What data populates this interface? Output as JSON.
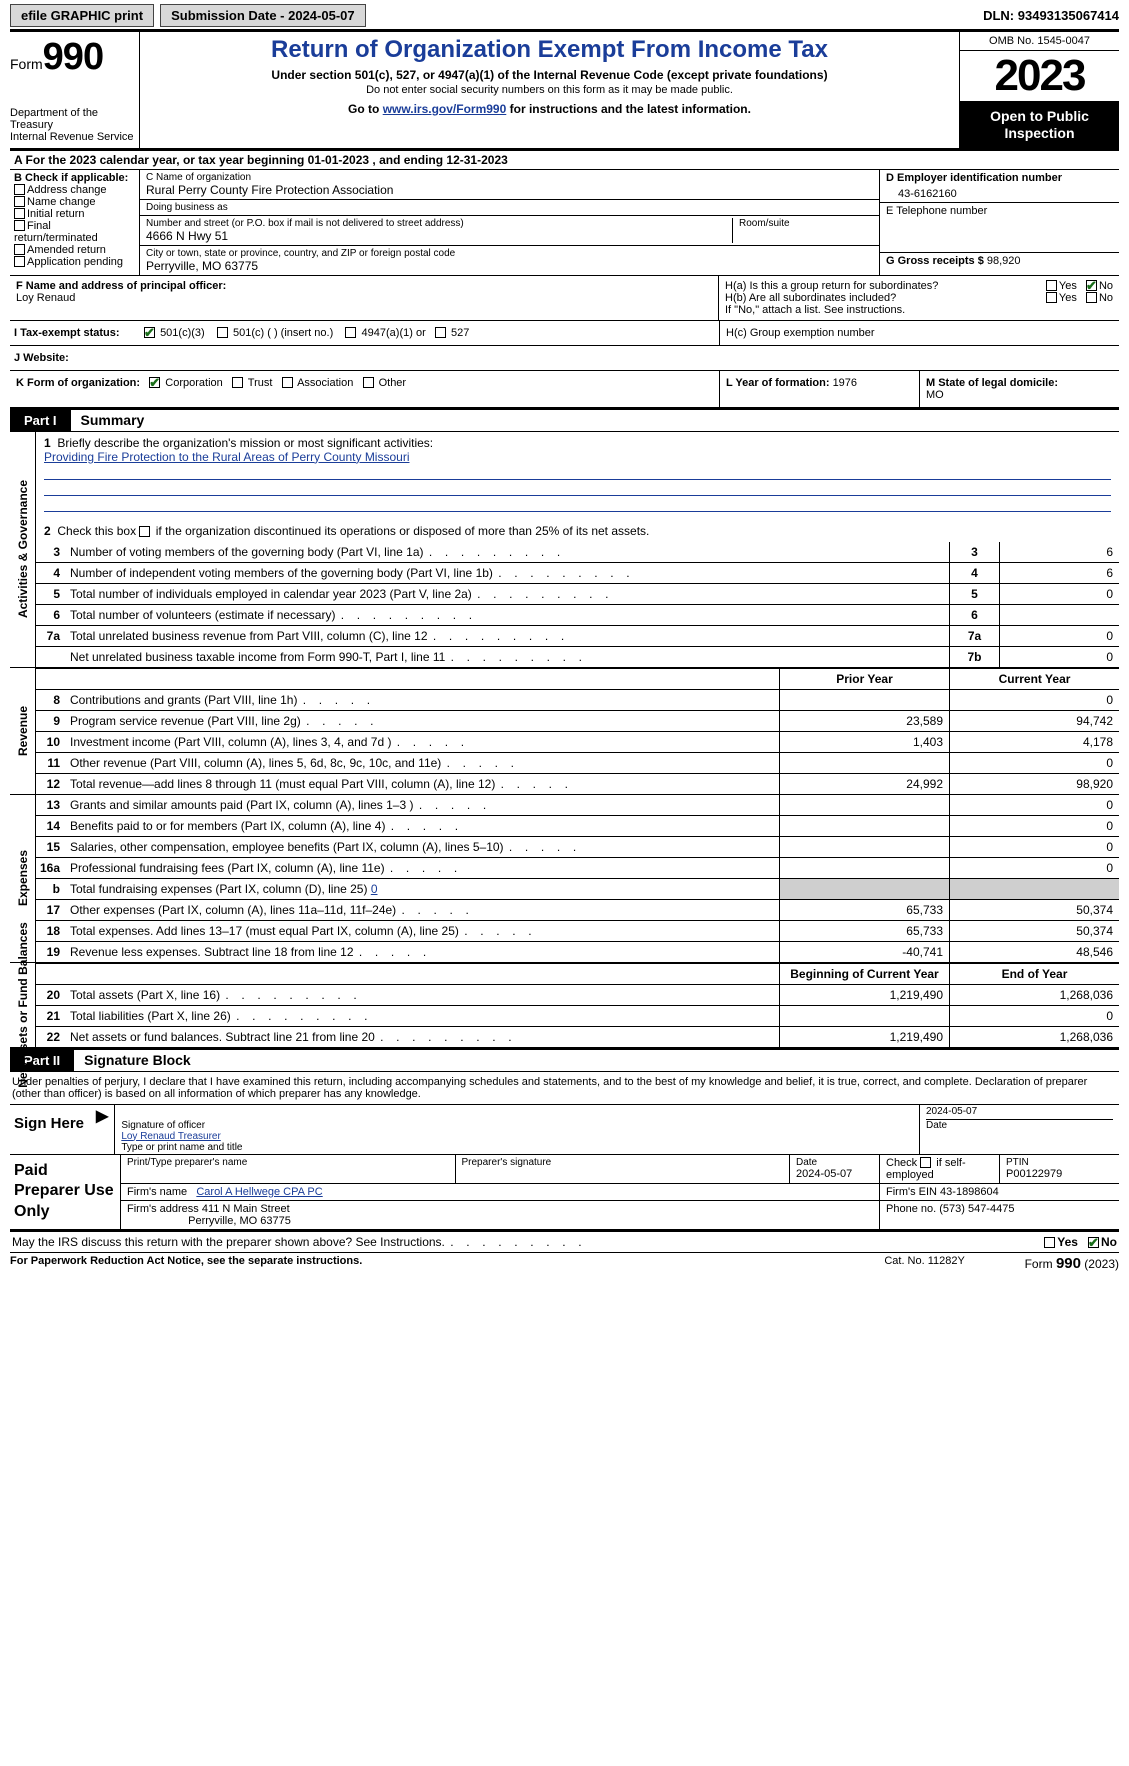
{
  "topbar": {
    "efile": "efile GRAPHIC print",
    "sub_date_label": "Submission Date - ",
    "sub_date": "2024-05-07",
    "dln_label": "DLN: ",
    "dln": "93493135067414"
  },
  "header": {
    "form_prefix": "Form",
    "form_number": "990",
    "dept": "Department of the Treasury\nInternal Revenue Service",
    "title": "Return of Organization Exempt From Income Tax",
    "sub1": "Under section 501(c), 527, or 4947(a)(1) of the Internal Revenue Code (except private foundations)",
    "sub2": "Do not enter social security numbers on this form as it may be made public.",
    "goto_pre": "Go to ",
    "goto_link": "www.irs.gov/Form990",
    "goto_post": " for instructions and the latest information.",
    "omb": "OMB No. 1545-0047",
    "year": "2023",
    "open": "Open to Public Inspection"
  },
  "lineA": {
    "pre": "A  For the 2023 calendar year, or tax year beginning ",
    "begin": "01-01-2023",
    "mid": "  , and ending ",
    "end": "12-31-2023"
  },
  "colB": {
    "hdr": "B Check if applicable:",
    "addr_change": "Address change",
    "name_change": "Name change",
    "initial": "Initial return",
    "final": "Final return/terminated",
    "amended": "Amended return",
    "app_pending": "Application pending"
  },
  "colC": {
    "name_lbl": "C Name of organization",
    "name": "Rural Perry County Fire Protection Association",
    "dba_lbl": "Doing business as",
    "dba": "",
    "street_lbl": "Number and street (or P.O. box if mail is not delivered to street address)",
    "street": "4666 N Hwy 51",
    "room_lbl": "Room/suite",
    "room": "",
    "city_lbl": "City or town, state or province, country, and ZIP or foreign postal code",
    "city": "Perryville, MO  63775"
  },
  "colD": {
    "ein_lbl": "D Employer identification number",
    "ein": "43-6162160",
    "tel_lbl": "E Telephone number",
    "tel": "",
    "gross_lbl": "G Gross receipts $ ",
    "gross": "98,920"
  },
  "rowF": {
    "f_lbl": "F  Name and address of principal officer:",
    "f_name": "Loy Renaud",
    "ha_lbl": "H(a)  Is this a group return for subordinates?",
    "hb_lbl": "H(b)  Are all subordinates included?",
    "hb_note": "If \"No,\" attach a list. See instructions.",
    "yes": "Yes",
    "no": "No"
  },
  "rowI": {
    "lbl": "I  Tax-exempt status:",
    "c3": "501(c)(3)",
    "c_ins": "501(c) (   ) (insert no.)",
    "a1": "4947(a)(1) or",
    "s527": "527"
  },
  "rowJ": {
    "lbl": "J  Website:",
    "hc_lbl": "H(c)  Group exemption number"
  },
  "rowK": {
    "k_lbl": "K Form of organization:",
    "corp": "Corporation",
    "trust": "Trust",
    "assoc": "Association",
    "other": "Other",
    "l_lbl": "L Year of formation: ",
    "l_val": "1976",
    "m_lbl": "M State of legal domicile: ",
    "m_val": "MO"
  },
  "partI": {
    "tag": "Part I",
    "title": "Summary",
    "line1_lbl": "Briefly describe the organization's mission or most significant activities:",
    "line1_val": "Providing Fire Protection to the Rural Areas of Perry County Missouri",
    "line2": "Check this box      if the organization discontinued its operations or disposed of more than 25% of its net assets.",
    "vlabel_gov": "Activities & Governance",
    "vlabel_rev": "Revenue",
    "vlabel_exp": "Expenses",
    "vlabel_net": "Net Assets or Fund Balances",
    "rows_gov": [
      {
        "n": "3",
        "d": "Number of voting members of the governing body (Part VI, line 1a)",
        "bn": "3",
        "v": "6"
      },
      {
        "n": "4",
        "d": "Number of independent voting members of the governing body (Part VI, line 1b)",
        "bn": "4",
        "v": "6"
      },
      {
        "n": "5",
        "d": "Total number of individuals employed in calendar year 2023 (Part V, line 2a)",
        "bn": "5",
        "v": "0"
      },
      {
        "n": "6",
        "d": "Total number of volunteers (estimate if necessary)",
        "bn": "6",
        "v": ""
      },
      {
        "n": "7a",
        "d": "Total unrelated business revenue from Part VIII, column (C), line 12",
        "bn": "7a",
        "v": "0"
      },
      {
        "n": "",
        "d": "Net unrelated business taxable income from Form 990-T, Part I, line 11",
        "bn": "7b",
        "v": "0"
      }
    ],
    "hdr_prior": "Prior Year",
    "hdr_curr": "Current Year",
    "rows_rev": [
      {
        "n": "8",
        "d": "Contributions and grants (Part VIII, line 1h)",
        "p": "",
        "c": "0"
      },
      {
        "n": "9",
        "d": "Program service revenue (Part VIII, line 2g)",
        "p": "23,589",
        "c": "94,742"
      },
      {
        "n": "10",
        "d": "Investment income (Part VIII, column (A), lines 3, 4, and 7d )",
        "p": "1,403",
        "c": "4,178"
      },
      {
        "n": "11",
        "d": "Other revenue (Part VIII, column (A), lines 5, 6d, 8c, 9c, 10c, and 11e)",
        "p": "",
        "c": "0"
      },
      {
        "n": "12",
        "d": "Total revenue—add lines 8 through 11 (must equal Part VIII, column (A), line 12)",
        "p": "24,992",
        "c": "98,920"
      }
    ],
    "rows_exp": [
      {
        "n": "13",
        "d": "Grants and similar amounts paid (Part IX, column (A), lines 1–3 )",
        "p": "",
        "c": "0"
      },
      {
        "n": "14",
        "d": "Benefits paid to or for members (Part IX, column (A), line 4)",
        "p": "",
        "c": "0"
      },
      {
        "n": "15",
        "d": "Salaries, other compensation, employee benefits (Part IX, column (A), lines 5–10)",
        "p": "",
        "c": "0"
      },
      {
        "n": "16a",
        "d": "Professional fundraising fees (Part IX, column (A), line 11e)",
        "p": "",
        "c": "0"
      },
      {
        "n": "b",
        "d": "Total fundraising expenses (Part IX, column (D), line 25) 0",
        "p": "grey",
        "c": "grey"
      },
      {
        "n": "17",
        "d": "Other expenses (Part IX, column (A), lines 11a–11d, 11f–24e)",
        "p": "65,733",
        "c": "50,374"
      },
      {
        "n": "18",
        "d": "Total expenses. Add lines 13–17 (must equal Part IX, column (A), line 25)",
        "p": "65,733",
        "c": "50,374"
      },
      {
        "n": "19",
        "d": "Revenue less expenses. Subtract line 18 from line 12",
        "p": "-40,741",
        "c": "48,546"
      }
    ],
    "hdr_beg": "Beginning of Current Year",
    "hdr_end": "End of Year",
    "rows_net": [
      {
        "n": "20",
        "d": "Total assets (Part X, line 16)",
        "p": "1,219,490",
        "c": "1,268,036"
      },
      {
        "n": "21",
        "d": "Total liabilities (Part X, line 26)",
        "p": "",
        "c": "0"
      },
      {
        "n": "22",
        "d": "Net assets or fund balances. Subtract line 21 from line 20",
        "p": "1,219,490",
        "c": "1,268,036"
      }
    ]
  },
  "partII": {
    "tag": "Part II",
    "title": "Signature Block",
    "perjury": "Under penalties of perjury, I declare that I have examined this return, including accompanying schedules and statements, and to the best of my knowledge and belief, it is true, correct, and complete. Declaration of preparer (other than officer) is based on all information of which preparer has any knowledge.",
    "sign_here": "Sign Here",
    "sig_officer_lbl": "Signature of officer",
    "sig_date_lbl": "Date",
    "sig_date": "2024-05-07",
    "sig_name": "Loy Renaud Treasurer",
    "sig_name_lbl": "Type or print name and title",
    "paid": "Paid Preparer Use Only",
    "prep_name_lbl": "Print/Type preparer's name",
    "prep_sig_lbl": "Preparer's signature",
    "prep_date_lbl": "Date",
    "prep_date": "2024-05-07",
    "prep_check_lbl": "Check      if self-employed",
    "ptin_lbl": "PTIN",
    "ptin": "P00122979",
    "firm_name_lbl": "Firm's name  ",
    "firm_name": "Carol A Hellwege CPA PC",
    "firm_ein_lbl": "Firm's EIN  ",
    "firm_ein": "43-1898604",
    "firm_addr_lbl": "Firm's address ",
    "firm_addr1": "411 N Main Street",
    "firm_addr2": "Perryville, MO  63775",
    "firm_phone_lbl": "Phone no. ",
    "firm_phone": "(573) 547-4475",
    "discuss": "May the IRS discuss this return with the preparer shown above? See Instructions.",
    "yes": "Yes",
    "no": "No"
  },
  "footer": {
    "paperwork": "For Paperwork Reduction Act Notice, see the separate instructions.",
    "cat": "Cat. No. 11282Y",
    "form": "Form 990 (2023)"
  }
}
